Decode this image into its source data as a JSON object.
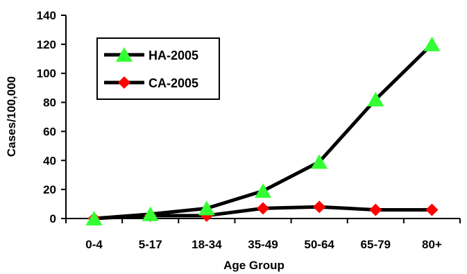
{
  "chart_data": {
    "type": "line",
    "title": "",
    "xlabel": "Age Group",
    "ylabel": "Cases/100,000",
    "categories": [
      "0-4",
      "5-17",
      "18-34",
      "35-49",
      "50-64",
      "65-79",
      "80+"
    ],
    "ylim": [
      0,
      140
    ],
    "yticks": [
      0,
      20,
      40,
      60,
      80,
      100,
      120,
      140
    ],
    "grid": false,
    "legend_position": "top-left",
    "series": [
      {
        "name": "HA-2005",
        "values": [
          0,
          3,
          7,
          19,
          39,
          82,
          120
        ],
        "line_color": "#000000",
        "marker": "triangle",
        "marker_color": "#33ff33"
      },
      {
        "name": "CA-2005",
        "values": [
          0,
          2,
          2,
          7,
          8,
          6,
          6
        ],
        "line_color": "#000000",
        "marker": "diamond",
        "marker_color": "#ff0000"
      }
    ]
  }
}
